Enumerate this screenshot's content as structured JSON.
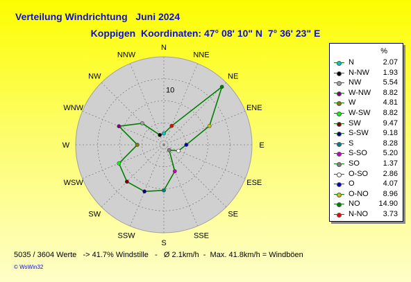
{
  "title_line1": "Verteilung Windrichtung   Juni 2024",
  "title_line2": "Koppigen  Koordinaten: 47° 08' 10\" N  7° 36' 23\" E",
  "footer_text": "5035 / 3604 Werte   -> 41.7% Windstille   -   Ø 2.1km/h  -  Max. 41.8km/h = Windböen",
  "copyright": "© WsWin32",
  "legend_header": "%",
  "colors": {
    "grid": "#808080",
    "disc": "#d0d0d0",
    "series": "#008000"
  },
  "chart_data": {
    "type": "radar",
    "title": "Verteilung Windrichtung   Juni 2024",
    "subtitle": "Koppigen  Koordinaten: 47° 08' 10\" N  7° 36' 23\" E",
    "r_tick_label": "10",
    "r_max": 16,
    "rings": [
      4,
      8,
      12,
      16
    ],
    "grid": true,
    "legend_position": "right",
    "series_color": "#008000",
    "directions": [
      {
        "label": "N",
        "legend": "N",
        "value": 2.07,
        "color": "#00c8c8"
      },
      {
        "label": "NNE",
        "legend": "N-NO",
        "value": 3.73,
        "color": "#ff0000"
      },
      {
        "label": "NE",
        "legend": "NO",
        "value": 14.9,
        "color": "#008000"
      },
      {
        "label": "ENE",
        "legend": "O-NO",
        "value": 8.96,
        "color": "#c8c800"
      },
      {
        "label": "E",
        "legend": "O",
        "value": 4.07,
        "color": "#0000c8"
      },
      {
        "label": "ESE",
        "legend": "O-SO",
        "value": 2.86,
        "color": "#ffffff"
      },
      {
        "label": "SE",
        "legend": "SO",
        "value": 1.37,
        "color": "#808080"
      },
      {
        "label": "SSE",
        "legend": "S-SO",
        "value": 5.2,
        "color": "#c800c8"
      },
      {
        "label": "S",
        "legend": "S",
        "value": 8.28,
        "color": "#008080"
      },
      {
        "label": "SSW",
        "legend": "S-SW",
        "value": 9.18,
        "color": "#000080"
      },
      {
        "label": "SW",
        "legend": "SW",
        "value": 9.47,
        "color": "#800000"
      },
      {
        "label": "WSW",
        "legend": "W-SW",
        "value": 8.82,
        "color": "#00ff00"
      },
      {
        "label": "W",
        "legend": "W",
        "value": 4.81,
        "color": "#808000"
      },
      {
        "label": "WNW",
        "legend": "W-NW",
        "value": 8.82,
        "color": "#800080"
      },
      {
        "label": "NW",
        "legend": "NW",
        "value": 5.54,
        "color": "#a0a0a0"
      },
      {
        "label": "NNW",
        "legend": "N-NW",
        "value": 1.93,
        "color": "#000000"
      }
    ],
    "legend_order": [
      "N",
      "N-NW",
      "NW",
      "W-NW",
      "W",
      "W-SW",
      "SW",
      "S-SW",
      "S",
      "S-SO",
      "SO",
      "O-SO",
      "O",
      "O-NO",
      "NO",
      "N-NO"
    ]
  }
}
